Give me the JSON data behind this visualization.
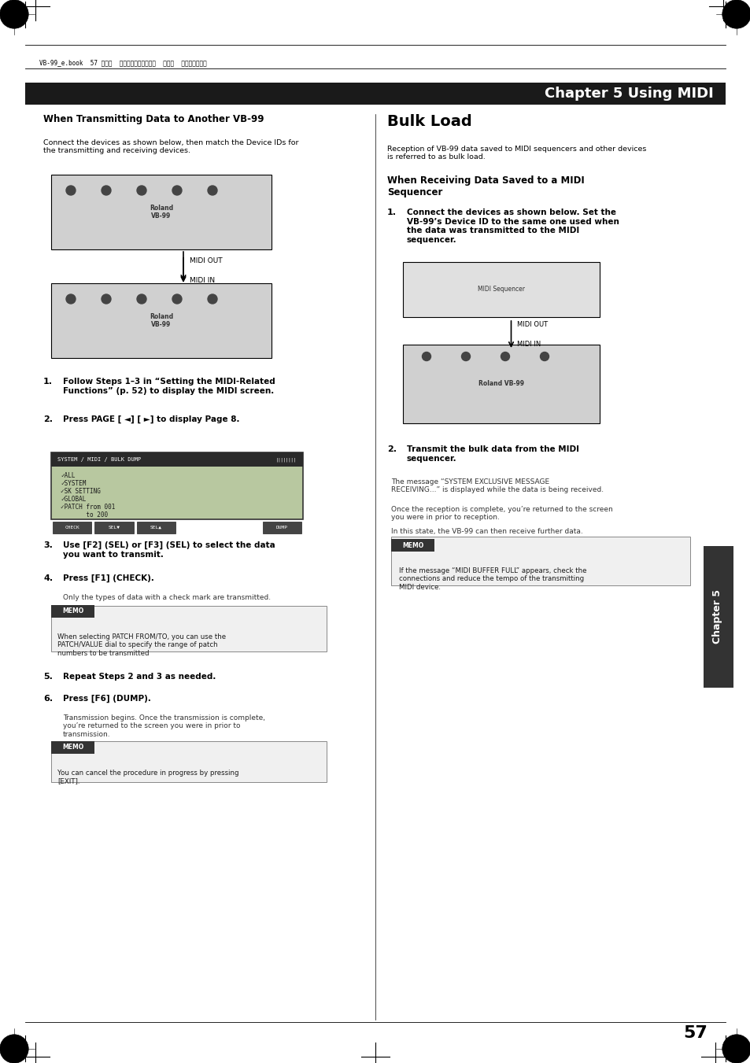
{
  "page_width": 9.54,
  "page_height": 13.51,
  "bg_color": "#ffffff",
  "header_bar_color": "#1a1a1a",
  "header_text": "Chapter 5 Using MIDI",
  "header_text_color": "#ffffff",
  "header_font_size": 13,
  "top_meta_text": "VB-99_e.book  57 ページ  ２００８年８月１８日  月曜日  午後１時１０分",
  "left_col_title": "When Transmitting Data to Another VB-99",
  "left_col_subtitle": "Connect the devices as shown below, then match the Device IDs for\nthe transmitting and receiving devices.",
  "memo_left_1": "When selecting PATCH FROM/TO, you can use the\nPATCH/VALUE dial to specify the range of patch\nnumbers to be transmitted",
  "memo_left_2": "You can cancel the procedure in progress by pressing\n[EXIT].",
  "dump_note": "Transmission begins. Once the transmission is complete,\nyou’re returned to the screen you were in prior to\ntransmission.",
  "right_col_title": "Bulk Load",
  "right_col_subtitle": "Reception of VB-99 data saved to MIDI sequencers and other devices\nis referred to as bulk load.",
  "right_sub_heading": "When Receiving Data Saved to a MIDI\nSequencer",
  "right_step1_bold": "Connect the devices as shown below. Set the\nVB-99’s Device ID to the same one used when\nthe data was transmitted to the MIDI\nsequencer.",
  "right_step2_bold": "Transmit the bulk data from the MIDI\nsequencer.",
  "right_step2_note1": "The message “SYSTEM EXCLUSIVE MESSAGE\nRECEIVING...” is displayed while the data is being received.",
  "right_step2_note2": "Once the reception is complete, you’re returned to the screen\nyou were in prior to reception.",
  "right_step2_note3": "In this state, the VB-99 can then receive further data.",
  "memo_right": "If the message “MIDI BUFFER FULL” appears, check the\nconnections and reduce the tempo of the transmitting\nMIDI device.",
  "page_number": "57",
  "chapter_sidebar": "Chapter 5",
  "midi_out_label": "MIDI OUT",
  "midi_in_label": "MIDI IN",
  "screen_text": "SYSTEM / MIDI / BULK DUMP",
  "screen_lines": [
    "✓ALL",
    "✓SYSTEM",
    "✓SK SETTING",
    "✓GLOBAL",
    "✓PATCH from 001",
    "       to 200"
  ],
  "screen_buttons": [
    "CHECK",
    "SEL▼",
    "SEL▲",
    "",
    "",
    "DUMP"
  ],
  "step1_text": "Follow Steps 1–3 in “Setting the MIDI-Related\nFunctions” (p. 52) to display the MIDI screen.",
  "step2_text": "Press PAGE [ ◄] [ ►] to display Page 8.",
  "step3_text": "Use [F2] (SEL) or [F3] (SEL) to select the data\nyou want to transmit.",
  "step4_text": "Press [F1] (CHECK).",
  "step4_note": "Only the types of data with a check mark are transmitted.",
  "step5_text": "Repeat Steps 2 and 3 as needed.",
  "step6_text": "Press [F6] (DUMP)."
}
